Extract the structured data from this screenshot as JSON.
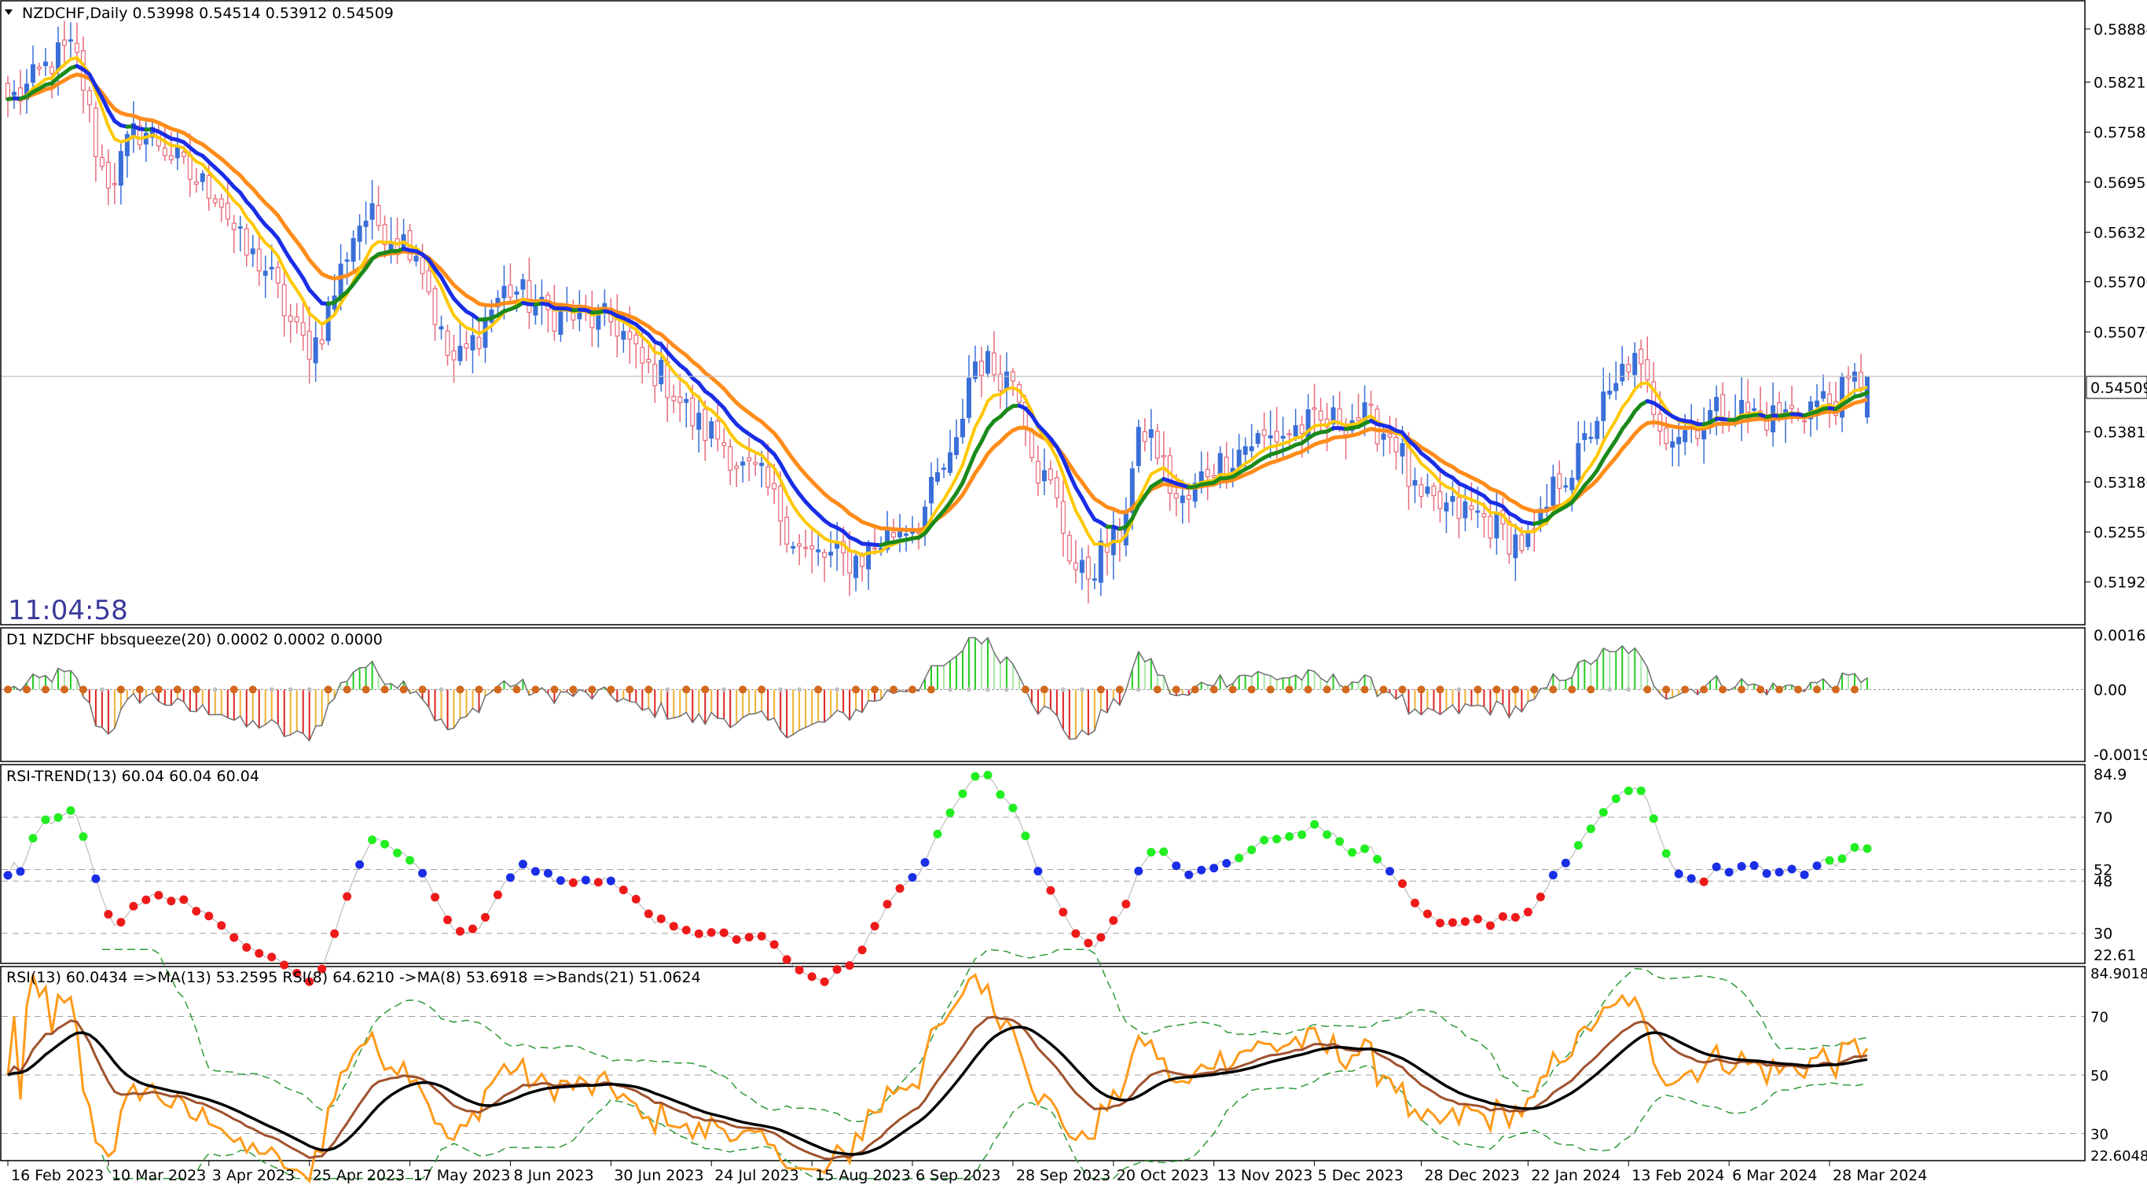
{
  "main": {
    "header": "NZDCHF,Daily  0.53998 0.54514 0.53912 0.54509",
    "clock": "11:04:58",
    "price_ticks": [
      "0.58884",
      "0.58215",
      "0.57585",
      "0.56955",
      "0.56325",
      "0.55700",
      "0.55070",
      "0.54509",
      "0.53810",
      "0.53180",
      "0.52550",
      "0.51920"
    ],
    "current_price": "0.54509"
  },
  "bbsqueeze": {
    "header": "D1 NZDCHF bbsqueeze(20) 0.0002 0.0002 0.0000",
    "ticks": [
      "0.0016",
      "0.00",
      "-0.0019"
    ]
  },
  "rsi_trend": {
    "header": "RSI-TREND(13) 60.04 60.04 60.04",
    "ticks": [
      "84.9",
      "70",
      "52",
      "48",
      "30",
      "22.61"
    ]
  },
  "rsi_bands": {
    "header": "RSI(13) 60.0434  =>MA(13) 53.2595  RSI(8) 64.6210  ->MA(8) 53.6918  =>Bands(21) 51.0624",
    "ticks": [
      "84.9018",
      "70",
      "50",
      "30",
      "22.6048"
    ]
  },
  "time_axis": [
    "16 Feb 2023",
    "10 Mar 2023",
    "3 Apr 2023",
    "25 Apr 2023",
    "17 May 2023",
    "8 Jun 2023",
    "30 Jun 2023",
    "24 Jul 2023",
    "15 Aug 2023",
    "6 Sep 2023",
    "28 Sep 2023",
    "20 Oct 2023",
    "13 Nov 2023",
    "5 Dec 2023",
    "28 Dec 2023",
    "22 Jan 2024",
    "13 Feb 2024",
    "6 Mar 2024",
    "28 Mar 2024"
  ],
  "colors": {
    "bull_candle": "#3a6fd8",
    "bear_candle": "#e86a7a",
    "ma_fast": "#ffc800",
    "ma_slow": "#ff8c1a",
    "trend_up": "#1a8a1a",
    "trend_down": "#1a2ee6",
    "squeeze_on": "#d2691e",
    "squeeze_off": "#c0c0c0",
    "rsi_up": "#22ee22",
    "rsi_mid": "#1a2ee6",
    "rsi_down": "#ee1a1a",
    "rsi13": "#ff9a1a",
    "rsi_ma": "#a0522d",
    "rsi_slow": "#000000",
    "bands": "#2e9a3a"
  },
  "chart_data": {
    "type": "candlestick",
    "symbol": "NZDCHF",
    "timeframe": "Daily",
    "ylim": [
      0.5155,
      0.5915
    ],
    "close_anchors": [
      [
        "16 Feb 2023",
        0.58
      ],
      [
        "2 Mar 2023",
        0.586
      ],
      [
        "10 Mar 2023",
        0.57
      ],
      [
        "17 Mar 2023",
        0.576
      ],
      [
        "3 Apr 2023",
        0.569
      ],
      [
        "12 Apr 2023",
        0.56
      ],
      [
        "25 Apr 2023",
        0.549
      ],
      [
        "8 May 2023",
        0.565
      ],
      [
        "17 May 2023",
        0.562
      ],
      [
        "26 May 2023",
        0.547
      ],
      [
        "8 Jun 2023",
        0.556
      ],
      [
        "16 Jun 2023",
        0.553
      ],
      [
        "30 Jun 2023",
        0.552
      ],
      [
        "10 Jul 2023",
        0.546
      ],
      [
        "24 Jul 2023",
        0.538
      ],
      [
        "1 Aug 2023",
        0.533
      ],
      [
        "15 Aug 2023",
        0.5225
      ],
      [
        "23 Aug 2023",
        0.522
      ],
      [
        "6 Sep 2023",
        0.5265
      ],
      [
        "14 Sep 2023",
        0.534
      ],
      [
        "20 Sep 2023",
        0.547
      ],
      [
        "28 Sep 2023",
        0.545
      ],
      [
        "5 Oct 2023",
        0.532
      ],
      [
        "13 Oct 2023",
        0.52
      ],
      [
        "20 Oct 2023",
        0.524
      ],
      [
        "27 Oct 2023",
        0.538
      ],
      [
        "6 Nov 2023",
        0.529
      ],
      [
        "13 Nov 2023",
        0.534
      ],
      [
        "22 Nov 2023",
        0.537
      ],
      [
        "5 Dec 2023",
        0.539
      ],
      [
        "14 Dec 2023",
        0.54
      ],
      [
        "21 Dec 2023",
        0.538
      ],
      [
        "28 Dec 2023",
        0.529
      ],
      [
        "8 Jan 2024",
        0.528
      ],
      [
        "22 Jan 2024",
        0.524
      ],
      [
        "30 Jan 2024",
        0.533
      ],
      [
        "8 Feb 2024",
        0.542
      ],
      [
        "13 Feb 2024",
        0.547
      ],
      [
        "22 Feb 2024",
        0.538
      ],
      [
        "6 Mar 2024",
        0.541
      ],
      [
        "15 Mar 2024",
        0.54
      ],
      [
        "28 Mar 2024",
        0.542
      ],
      [
        "5 Apr 2024",
        0.5451
      ]
    ],
    "last_bar": {
      "open": 0.53998,
      "high": 0.54514,
      "low": 0.53912,
      "close": 0.54509
    },
    "indicators": {
      "bbsqueeze": {
        "params": "20",
        "values": [
          0.0002,
          0.0002,
          0.0
        ],
        "ylim": [
          -0.0019,
          0.0016
        ]
      },
      "rsi_trend": {
        "period": 13,
        "value": 60.04,
        "ylim": [
          22.61,
          84.9
        ],
        "levels": [
          70,
          52,
          48,
          30
        ]
      },
      "rsi_bands": {
        "rsi13": 60.0434,
        "ma13": 53.2595,
        "rsi8": 64.621,
        "ma8": 53.6918,
        "bands21": 51.0624,
        "ylim": [
          22.6048,
          84.9018
        ],
        "levels": [
          70,
          50,
          30
        ]
      }
    }
  }
}
